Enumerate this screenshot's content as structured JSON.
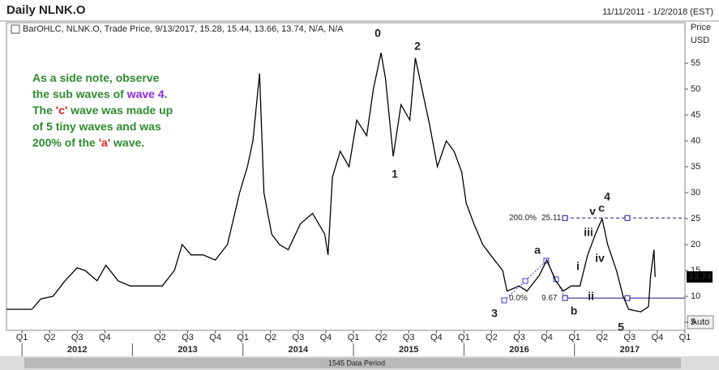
{
  "chart_data": {
    "type": "line",
    "title": "Daily NLNK.O",
    "date_range": "11/11/2011 - 1/2/2018 (EST)",
    "subtitle": "BarOHLC, NLNK.O, Trade Price, 9/13/2017, 15.28, 15.44, 13.66, 13.74, N/A, N/A",
    "y_axis_label": "Price",
    "y_axis_unit": "USD",
    "color": "#000000",
    "x": [
      2011.86,
      2012.09,
      2012.17,
      2012.28,
      2012.39,
      2012.5,
      2012.57,
      2012.68,
      2012.76,
      2012.87,
      2012.98,
      2013.12,
      2013.27,
      2013.38,
      2013.45,
      2013.53,
      2013.64,
      2013.75,
      2013.86,
      2013.97,
      2014.04,
      2014.09,
      2014.15,
      2014.19,
      2014.26,
      2014.33,
      2014.41,
      2014.52,
      2014.63,
      2014.74,
      2014.77,
      2014.81,
      2014.88,
      2014.96,
      2015.03,
      2015.12,
      2015.18,
      2015.25,
      2015.29,
      2015.36,
      2015.43,
      2015.51,
      2015.56,
      2015.62,
      2015.69,
      2015.76,
      2015.84,
      2015.91,
      2015.98,
      2016.02,
      2016.09,
      2016.17,
      2016.24,
      2016.35,
      2016.39,
      2016.5,
      2016.57,
      2016.68,
      2016.75,
      2016.83,
      2016.9,
      2016.97,
      2017.05,
      2017.12,
      2017.19,
      2017.25,
      2017.3,
      2017.38,
      2017.44,
      2017.49,
      2017.6,
      2017.67,
      2017.69,
      2017.72,
      2017.73
    ],
    "values": [
      7.5,
      7.5,
      9.5,
      10,
      13,
      15.5,
      15,
      13,
      16,
      13,
      12,
      12,
      12,
      15,
      20,
      18,
      18,
      17,
      20,
      30,
      35,
      40,
      53,
      30,
      22,
      20,
      19,
      24,
      26,
      22,
      18,
      33,
      38,
      35,
      44,
      41,
      50,
      57,
      52,
      37,
      47,
      44,
      56,
      50,
      43,
      35,
      40,
      38,
      34,
      28,
      24,
      20,
      18,
      15,
      11,
      12,
      11,
      14,
      17,
      13,
      11,
      12,
      12,
      18,
      22,
      25,
      20,
      15,
      10,
      7.5,
      7,
      8,
      14,
      19,
      13.74
    ],
    "last_price": 13.74,
    "xlim": [
      2011.86,
      2018.0
    ],
    "ylim": [
      3.44,
      60.94
    ],
    "yticks": [
      5,
      10,
      15,
      20,
      25,
      30,
      35,
      40,
      45,
      50,
      55
    ],
    "xticks": [
      {
        "value": 2012,
        "label": "Q1"
      },
      {
        "value": 2012.25,
        "label": "Q2"
      },
      {
        "value": 2012.5,
        "label": "Q3"
      },
      {
        "value": 2012.75,
        "label": "Q4"
      },
      {
        "value": 2013.25,
        "label": "Q2"
      },
      {
        "value": 2013.5,
        "label": "Q3"
      },
      {
        "value": 2013.75,
        "label": "Q4"
      },
      {
        "value": 2014,
        "label": "Q1"
      },
      {
        "value": 2014.25,
        "label": "Q2"
      },
      {
        "value": 2014.5,
        "label": "Q3"
      },
      {
        "value": 2014.75,
        "label": "Q4"
      },
      {
        "value": 2015,
        "label": "Q1"
      },
      {
        "value": 2015.25,
        "label": "Q2"
      },
      {
        "value": 2015.5,
        "label": "Q3"
      },
      {
        "value": 2015.75,
        "label": "Q4"
      },
      {
        "value": 2016,
        "label": "Q1"
      },
      {
        "value": 2016.25,
        "label": "Q2"
      },
      {
        "value": 2016.5,
        "label": "Q3"
      },
      {
        "value": 2016.75,
        "label": "Q4"
      },
      {
        "value": 2017,
        "label": "Q1"
      },
      {
        "value": 2017.25,
        "label": "Q2"
      },
      {
        "value": 2017.5,
        "label": "Q3"
      },
      {
        "value": 2017.75,
        "label": "Q4"
      },
      {
        "value": 2018,
        "label": "Q1"
      }
    ],
    "year_ticks": [
      2012,
      2013,
      2014,
      2015,
      2016,
      2017
    ],
    "fib_levels": [
      {
        "label": "200.0%",
        "value": 25.11
      },
      {
        "label": "0.0%",
        "value": 9.67
      }
    ],
    "wave_labels": [
      "0",
      "2",
      "1",
      "3",
      "a",
      "b",
      "i",
      "ii",
      "iii",
      "iv",
      "v",
      "c",
      "4",
      "5"
    ],
    "note": [
      {
        "text": "As a side note, observe the sub waves of ",
        "color": "#2e8b2e"
      },
      {
        "text": "wave 4",
        "color": "#8a2be2"
      },
      {
        "text": ". The ",
        "color": "#2e8b2e"
      },
      {
        "text": "'c'",
        "color": "#e0201a"
      },
      {
        "text": " wave was made up of 5 tiny waves and was 200% of the ",
        "color": "#2e8b2e"
      },
      {
        "text": "'a'",
        "color": "#e0201a"
      },
      {
        "text": " wave.",
        "color": "#2e8b2e"
      }
    ],
    "data_period": "1545 Data Period",
    "auto_button": "Auto"
  }
}
